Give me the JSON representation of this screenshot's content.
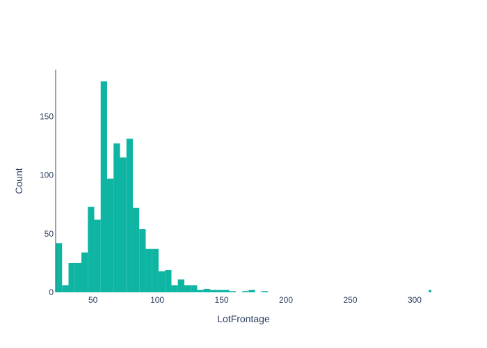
{
  "chart_data": {
    "type": "bar",
    "title": "",
    "xlabel": "LotFrontage",
    "ylabel": "Count",
    "bar_color": "#0fb5a3",
    "axis_color": "#444444",
    "text_color": "#2a3f5f",
    "grid": false,
    "bin_width": 5,
    "xlim": [
      21,
      313
    ],
    "ylim": [
      0,
      190
    ],
    "x_ticks": [
      50,
      100,
      150,
      200,
      250,
      300
    ],
    "y_ticks": [
      0,
      50,
      100,
      150
    ],
    "bins": [
      {
        "x0": 21,
        "x1": 26,
        "count": 42
      },
      {
        "x0": 26,
        "x1": 31,
        "count": 6
      },
      {
        "x0": 31,
        "x1": 36,
        "count": 25
      },
      {
        "x0": 36,
        "x1": 41,
        "count": 25
      },
      {
        "x0": 41,
        "x1": 46,
        "count": 34
      },
      {
        "x0": 46,
        "x1": 51,
        "count": 73
      },
      {
        "x0": 51,
        "x1": 56,
        "count": 62
      },
      {
        "x0": 56,
        "x1": 61,
        "count": 180
      },
      {
        "x0": 61,
        "x1": 66,
        "count": 97
      },
      {
        "x0": 66,
        "x1": 71,
        "count": 127
      },
      {
        "x0": 71,
        "x1": 76,
        "count": 115
      },
      {
        "x0": 76,
        "x1": 81,
        "count": 131
      },
      {
        "x0": 81,
        "x1": 86,
        "count": 72
      },
      {
        "x0": 86,
        "x1": 91,
        "count": 54
      },
      {
        "x0": 91,
        "x1": 96,
        "count": 37
      },
      {
        "x0": 96,
        "x1": 101,
        "count": 37
      },
      {
        "x0": 101,
        "x1": 106,
        "count": 18
      },
      {
        "x0": 106,
        "x1": 111,
        "count": 19
      },
      {
        "x0": 111,
        "x1": 116,
        "count": 6
      },
      {
        "x0": 116,
        "x1": 121,
        "count": 11
      },
      {
        "x0": 121,
        "x1": 126,
        "count": 6
      },
      {
        "x0": 126,
        "x1": 131,
        "count": 6
      },
      {
        "x0": 131,
        "x1": 136,
        "count": 2
      },
      {
        "x0": 136,
        "x1": 141,
        "count": 3
      },
      {
        "x0": 141,
        "x1": 146,
        "count": 2
      },
      {
        "x0": 146,
        "x1": 151,
        "count": 2
      },
      {
        "x0": 151,
        "x1": 156,
        "count": 2
      },
      {
        "x0": 156,
        "x1": 161,
        "count": 1
      },
      {
        "x0": 166,
        "x1": 171,
        "count": 1
      },
      {
        "x0": 171,
        "x1": 176,
        "count": 2
      },
      {
        "x0": 181,
        "x1": 186,
        "count": 1
      },
      {
        "x0": 311,
        "x1": 316,
        "count": 2
      }
    ]
  }
}
